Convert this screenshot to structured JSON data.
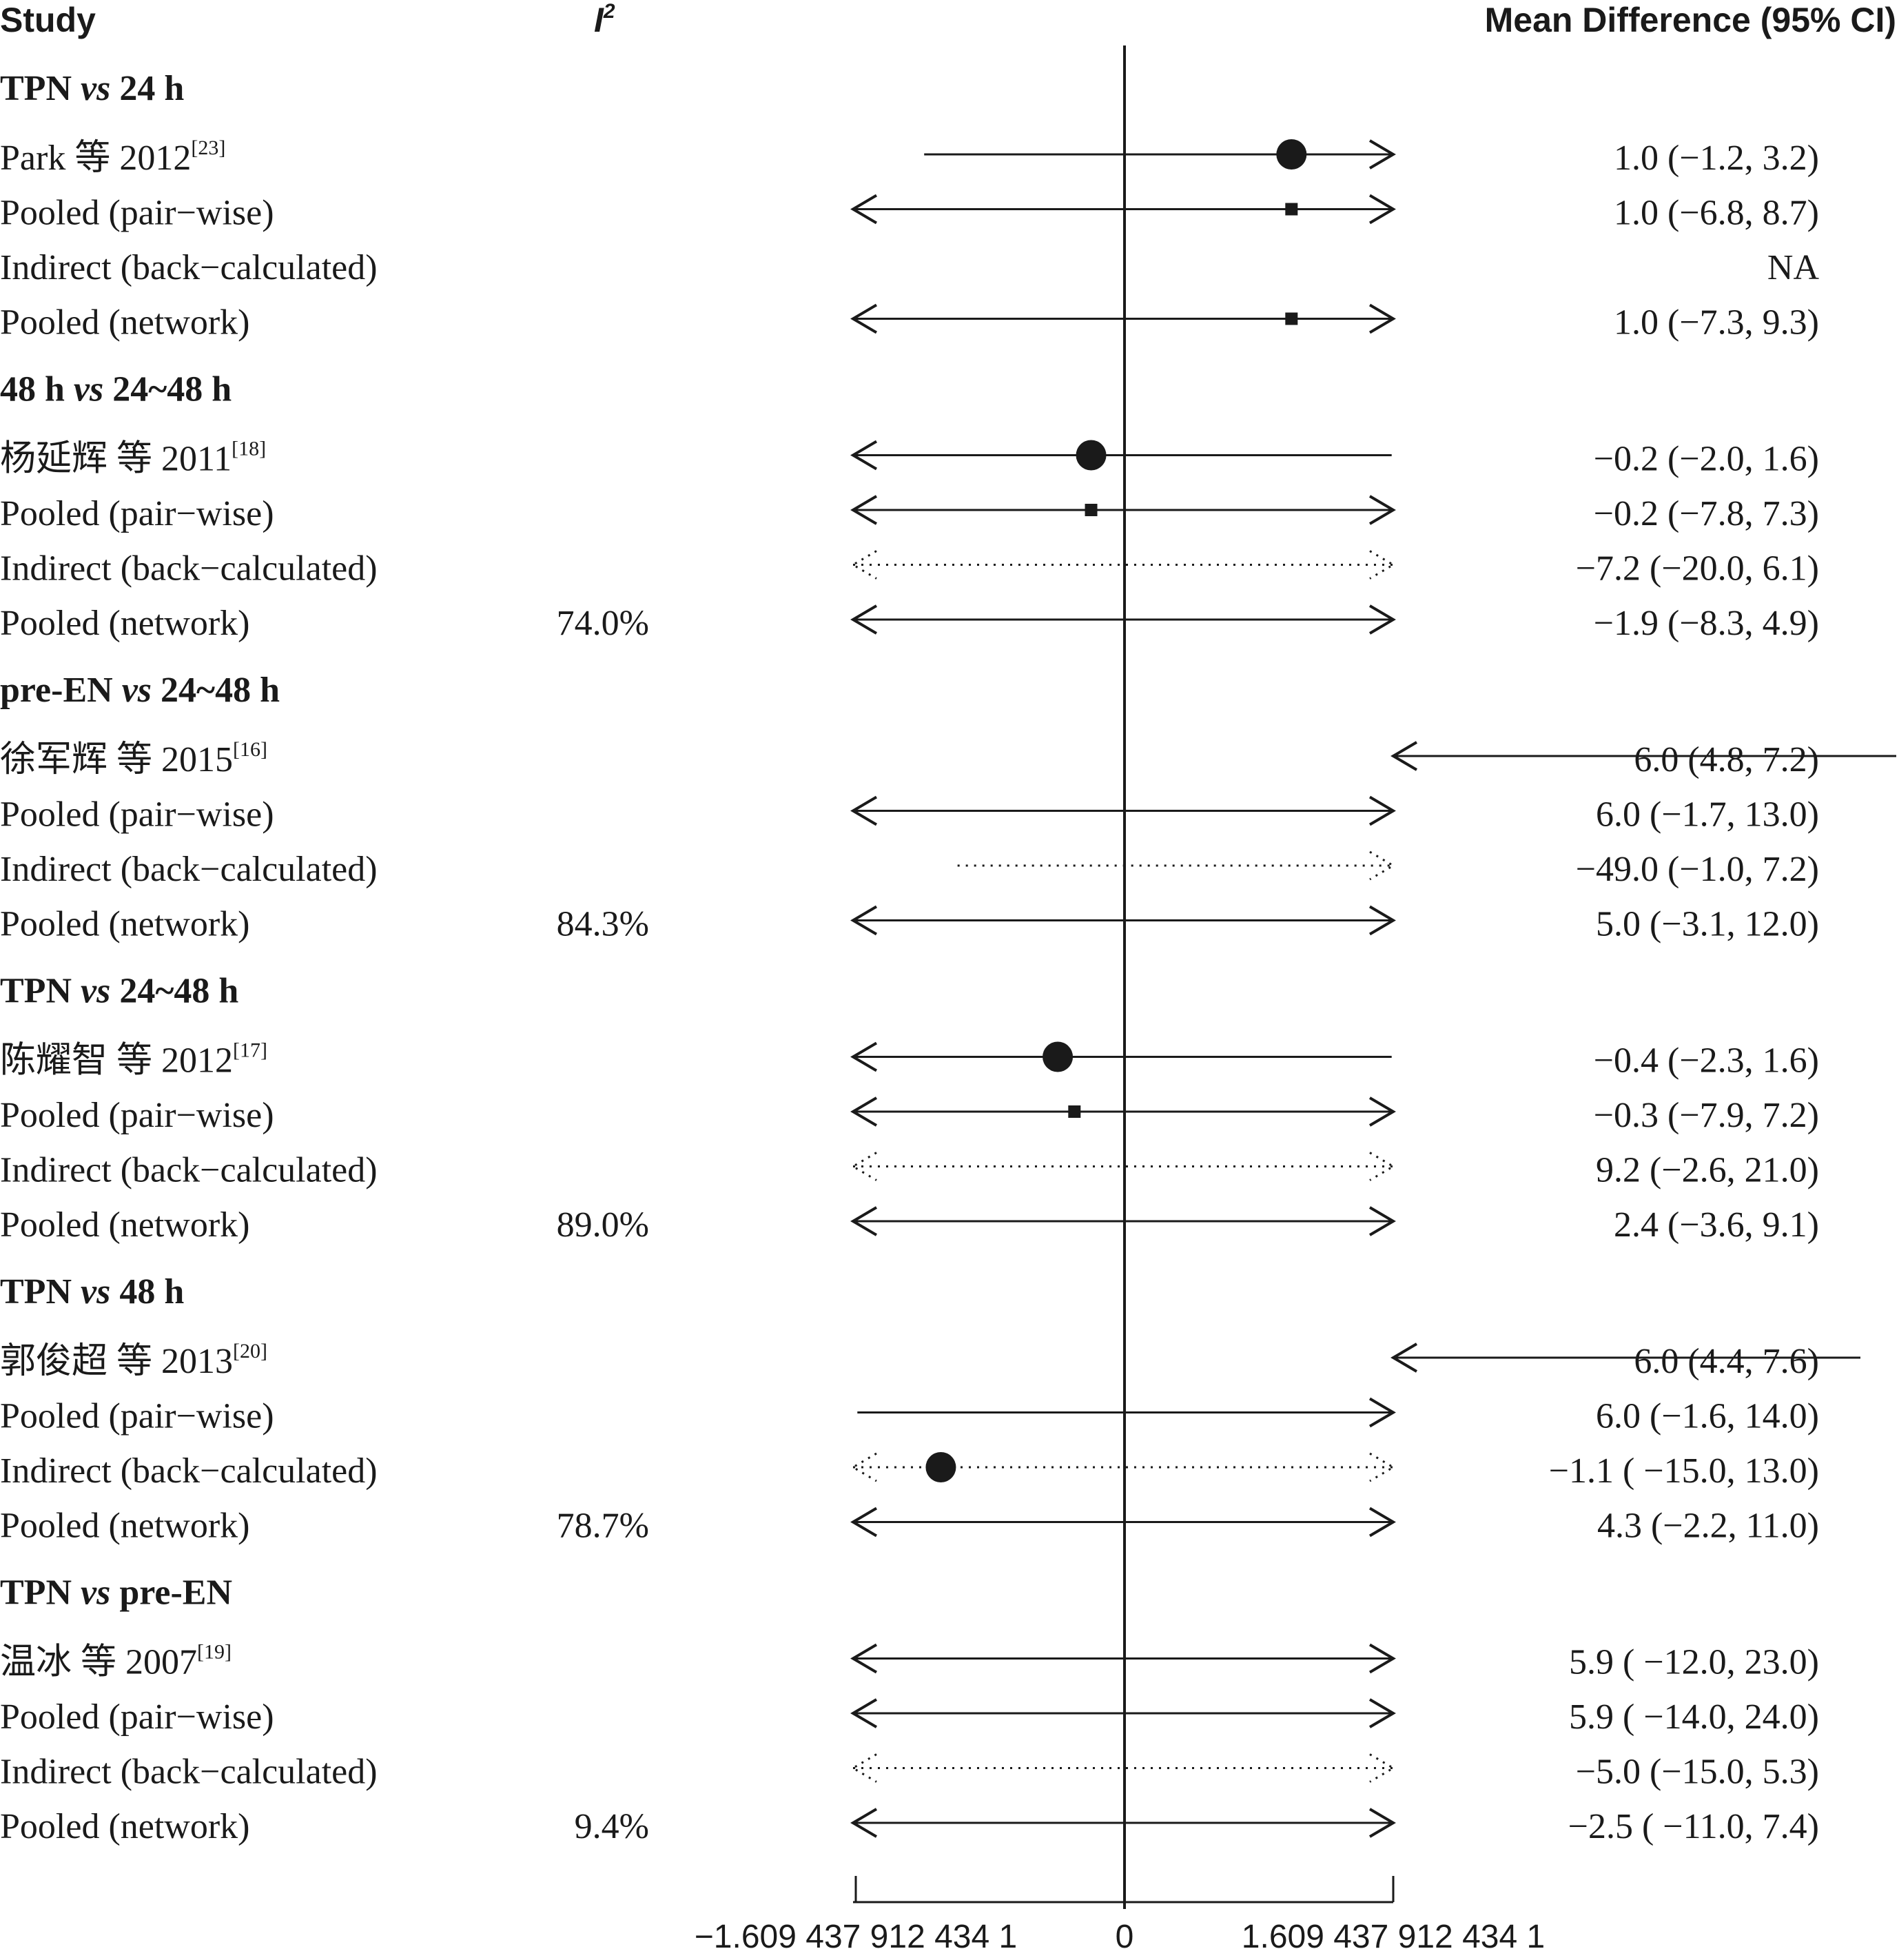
{
  "headers": {
    "study": "Study",
    "i2": "I",
    "i2_sup": "2",
    "md": "Mean Difference (95% CI)"
  },
  "chart_data": {
    "type": "forest",
    "reference_line": 0,
    "axis_ticks": [
      "−1.609 437 912 434 1",
      "0",
      "1.609 437 912 434 1"
    ],
    "axis_tick_values": [
      -1.6094379124341,
      0,
      1.6094379124341
    ],
    "xlim": [
      -1.6094379124341,
      1.6094379124341
    ],
    "groups": [
      {
        "title_a": "TPN ",
        "title_vs": "vs",
        "title_b": " 24 h",
        "rows": [
          {
            "label": "Park 等 2012",
            "ref": "[23]",
            "i2": "",
            "ci_text": "1.0 (−1.2, 3.2)",
            "est": 1.0,
            "lo": -1.2,
            "hi": 3.2,
            "marker": "circle",
            "style": "solid"
          },
          {
            "label": "Pooled (pair−wise)",
            "ref": "",
            "i2": "",
            "ci_text": "1.0 (−6.8, 8.7)",
            "est": 1.0,
            "lo": -6.8,
            "hi": 8.7,
            "marker": "square",
            "style": "solid"
          },
          {
            "label": "Indirect (back−calculated)",
            "ref": "",
            "i2": "",
            "ci_text": "NA",
            "est": null,
            "lo": null,
            "hi": null,
            "marker": "none",
            "style": "none"
          },
          {
            "label": "Pooled (network)",
            "ref": "",
            "i2": "",
            "ci_text": "1.0 (−7.3, 9.3)",
            "est": 1.0,
            "lo": -7.3,
            "hi": 9.3,
            "marker": "square",
            "style": "solid"
          }
        ]
      },
      {
        "title_a": "48 h ",
        "title_vs": "vs",
        "title_b": " 24~48 h",
        "rows": [
          {
            "label": "杨延辉 等 2011",
            "ref": "[18]",
            "i2": "",
            "ci_text": "−0.2 (−2.0, 1.6)",
            "est": -0.2,
            "lo": -2.0,
            "hi": 1.6,
            "marker": "circle",
            "style": "solid"
          },
          {
            "label": "Pooled (pair−wise)",
            "ref": "",
            "i2": "",
            "ci_text": "−0.2 (−7.8, 7.3)",
            "est": -0.2,
            "lo": -7.8,
            "hi": 7.3,
            "marker": "square",
            "style": "solid"
          },
          {
            "label": "Indirect (back−calculated)",
            "ref": "",
            "i2": "",
            "ci_text": "−7.2 (−20.0, 6.1)",
            "est": -7.2,
            "lo": -20.0,
            "hi": 6.1,
            "marker": "none",
            "style": "dotted"
          },
          {
            "label": "Pooled (network)",
            "ref": "",
            "i2": "74.0%",
            "ci_text": "−1.9 (−8.3, 4.9)",
            "est": -1.9,
            "lo": -8.3,
            "hi": 4.9,
            "marker": "none",
            "style": "solid"
          }
        ]
      },
      {
        "title_a": "pre-EN ",
        "title_vs": "vs",
        "title_b": " 24~48 h",
        "rows": [
          {
            "label": "徐军辉 等 2015",
            "ref": "[16]",
            "i2": "",
            "ci_text": "6.0 (4.8, 7.2)",
            "est": 6.0,
            "lo": 4.8,
            "hi": 7.2,
            "marker": "none",
            "style": "offscale"
          },
          {
            "label": "Pooled (pair−wise)",
            "ref": "",
            "i2": "",
            "ci_text": "6.0 (−1.7, 13.0)",
            "est": 6.0,
            "lo": -1.7,
            "hi": 13.0,
            "marker": "none",
            "style": "solid"
          },
          {
            "label": "Indirect (back−calculated)",
            "ref": "",
            "i2": "",
            "ci_text": "−49.0 (−1.0, 7.2)",
            "est": -49.0,
            "lo": -1.0,
            "hi": 7.2,
            "marker": "none",
            "style": "dotted"
          },
          {
            "label": "Pooled (network)",
            "ref": "",
            "i2": "84.3%",
            "ci_text": "5.0 (−3.1, 12.0)",
            "est": 5.0,
            "lo": -3.1,
            "hi": 12.0,
            "marker": "none",
            "style": "solid"
          }
        ]
      },
      {
        "title_a": "TPN ",
        "title_vs": "vs",
        "title_b": " 24~48 h",
        "rows": [
          {
            "label": "陈耀智 等 2012",
            "ref": "[17]",
            "i2": "",
            "ci_text": "−0.4 (−2.3, 1.6)",
            "est": -0.4,
            "lo": -2.3,
            "hi": 1.6,
            "marker": "circle",
            "style": "solid"
          },
          {
            "label": "Pooled (pair−wise)",
            "ref": "",
            "i2": "",
            "ci_text": "−0.3 (−7.9, 7.2)",
            "est": -0.3,
            "lo": -7.9,
            "hi": 7.2,
            "marker": "square",
            "style": "solid"
          },
          {
            "label": "Indirect (back−calculated)",
            "ref": "",
            "i2": "",
            "ci_text": "9.2 (−2.6, 21.0)",
            "est": 9.2,
            "lo": -2.6,
            "hi": 21.0,
            "marker": "none",
            "style": "dotted"
          },
          {
            "label": "Pooled (network)",
            "ref": "",
            "i2": "89.0%",
            "ci_text": "2.4 (−3.6, 9.1)",
            "est": 2.4,
            "lo": -3.6,
            "hi": 9.1,
            "marker": "none",
            "style": "solid"
          }
        ]
      },
      {
        "title_a": "TPN ",
        "title_vs": "vs",
        "title_b": " 48 h",
        "rows": [
          {
            "label": "郭俊超 等 2013",
            "ref": "[20]",
            "i2": "",
            "ci_text": "6.0 (4.4, 7.6)",
            "est": 6.0,
            "lo": 4.4,
            "hi": 7.6,
            "marker": "none",
            "style": "offscale"
          },
          {
            "label": "Pooled (pair−wise)",
            "ref": "",
            "i2": "",
            "ci_text": "6.0 (−1.6, 14.0)",
            "est": 6.0,
            "lo": -1.6,
            "hi": 14.0,
            "marker": "none",
            "style": "solid"
          },
          {
            "label": "Indirect (back−calculated)",
            "ref": "",
            "i2": "",
            "ci_text": "−1.1 ( −15.0, 13.0)",
            "est": -1.1,
            "lo": -15.0,
            "hi": 13.0,
            "marker": "circle",
            "style": "dotted"
          },
          {
            "label": "Pooled (network)",
            "ref": "",
            "i2": "78.7%",
            "ci_text": "4.3 (−2.2, 11.0)",
            "est": 4.3,
            "lo": -2.2,
            "hi": 11.0,
            "marker": "none",
            "style": "solid"
          }
        ]
      },
      {
        "title_a": "TPN ",
        "title_vs": "vs",
        "title_b": " pre-EN",
        "rows": [
          {
            "label": "温冰 等 2007",
            "ref": "[19]",
            "i2": "",
            "ci_text": "5.9 ( −12.0, 23.0)",
            "est": 5.9,
            "lo": -12.0,
            "hi": 23.0,
            "marker": "none",
            "style": "solid"
          },
          {
            "label": "Pooled (pair−wise)",
            "ref": "",
            "i2": "",
            "ci_text": "5.9 ( −14.0, 24.0)",
            "est": 5.9,
            "lo": -14.0,
            "hi": 24.0,
            "marker": "none",
            "style": "solid"
          },
          {
            "label": "Indirect (back−calculated)",
            "ref": "",
            "i2": "",
            "ci_text": "−5.0 (−15.0, 5.3)",
            "est": -5.0,
            "lo": -15.0,
            "hi": 5.3,
            "marker": "none",
            "style": "dotted"
          },
          {
            "label": "Pooled (network)",
            "ref": "",
            "i2": "9.4%",
            "ci_text": "−2.5 ( −11.0, 7.4)",
            "est": -2.5,
            "lo": -11.0,
            "hi": 7.4,
            "marker": "none",
            "style": "solid"
          }
        ]
      }
    ]
  }
}
